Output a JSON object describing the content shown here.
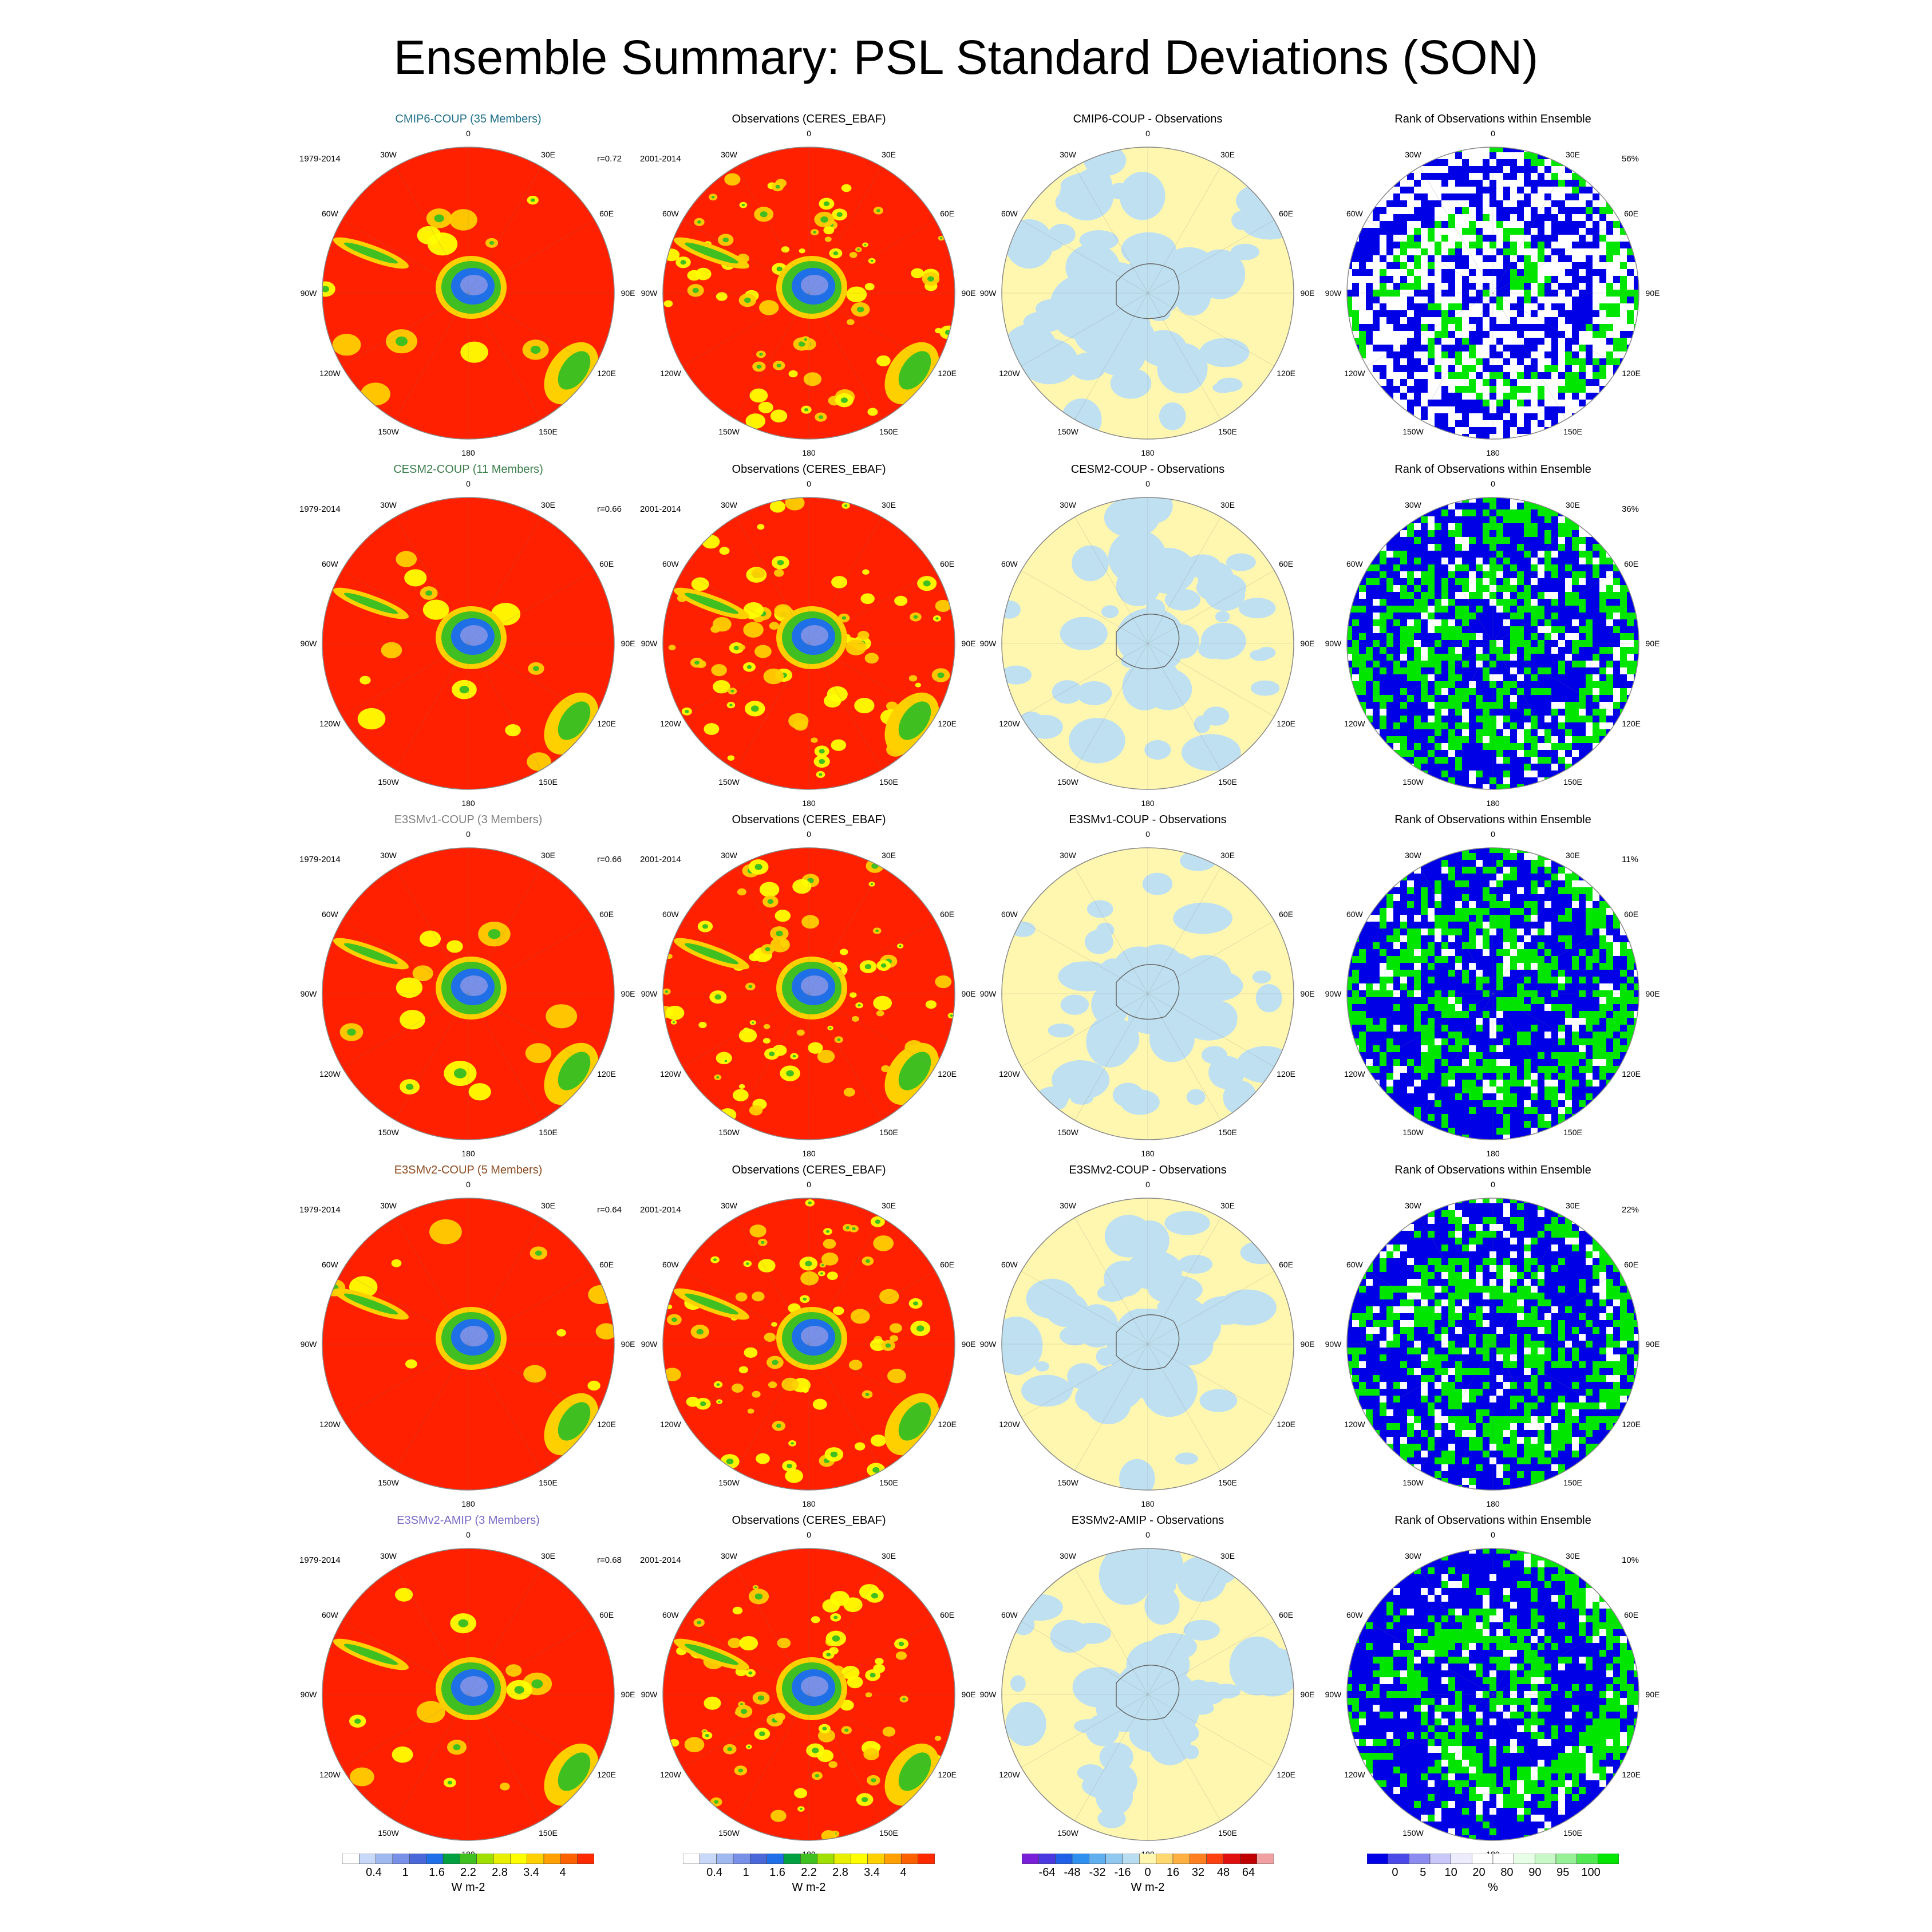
{
  "title": "Ensemble Summary: PSL Standard Deviations (SON)",
  "lon_labels": [
    "0",
    "30E",
    "60E",
    "90E",
    "120E",
    "150E",
    "180",
    "150W",
    "120W",
    "90W",
    "60W",
    "30W"
  ],
  "rows": [
    {
      "model_title": "CMIP6-COUP (35 Members)",
      "model_color": "#1f6f8b",
      "period": "1979-2014",
      "corr": "r=0.72",
      "obs_title": "Observations (CERES_EBAF)",
      "obs_period": "2001-2014",
      "diff_title": "CMIP6-COUP - Observations",
      "rank_title": "Rank of Observations within Ensemble",
      "rank_pct": "56%"
    },
    {
      "model_title": "CESM2-COUP (11 Members)",
      "model_color": "#3a7d4a",
      "period": "1979-2014",
      "corr": "r=0.66",
      "obs_title": "Observations (CERES_EBAF)",
      "obs_period": "2001-2014",
      "diff_title": "CESM2-COUP - Observations",
      "rank_title": "Rank of Observations within Ensemble",
      "rank_pct": "36%"
    },
    {
      "model_title": "E3SMv1-COUP (3 Members)",
      "model_color": "#7f7f7f",
      "period": "1979-2014",
      "corr": "r=0.66",
      "obs_title": "Observations (CERES_EBAF)",
      "obs_period": "2001-2014",
      "diff_title": "E3SMv1-COUP - Observations",
      "rank_title": "Rank of Observations within Ensemble",
      "rank_pct": "11%"
    },
    {
      "model_title": "E3SMv2-COUP (5 Members)",
      "model_color": "#8b4a1f",
      "period": "1979-2014",
      "corr": "r=0.64",
      "obs_title": "Observations (CERES_EBAF)",
      "obs_period": "2001-2014",
      "diff_title": "E3SMv2-COUP - Observations",
      "rank_title": "Rank of Observations within Ensemble",
      "rank_pct": "22%"
    },
    {
      "model_title": "E3SMv2-AMIP (3 Members)",
      "model_color": "#7b68c8",
      "period": "1979-2014",
      "corr": "r=0.68",
      "obs_title": "Observations (CERES_EBAF)",
      "obs_period": "2001-2014",
      "diff_title": "E3SMv2-AMIP - Observations",
      "rank_title": "Rank of Observations within Ensemble",
      "rank_pct": "10%"
    }
  ],
  "colorbars": [
    {
      "name": "std-colorbar-model",
      "colors": [
        "#ffffff",
        "#c8d8f8",
        "#a0b8f0",
        "#7890e8",
        "#4a68d8",
        "#1e6fe8",
        "#00a040",
        "#40c020",
        "#a0e000",
        "#e8f000",
        "#ffff00",
        "#ffd000",
        "#ffa000",
        "#ff6000",
        "#ff2a00"
      ],
      "labels": [
        "0.4",
        "1",
        "1.6",
        "2.2",
        "2.8",
        "3.4",
        "4"
      ],
      "unit": "W m-2"
    },
    {
      "name": "std-colorbar-obs",
      "colors": [
        "#ffffff",
        "#c8d8f8",
        "#a0b8f0",
        "#7890e8",
        "#4a68d8",
        "#1e6fe8",
        "#00a040",
        "#40c020",
        "#a0e000",
        "#e8f000",
        "#ffff00",
        "#ffd000",
        "#ffa000",
        "#ff6000",
        "#ff2a00"
      ],
      "labels": [
        "0.4",
        "1",
        "1.6",
        "2.2",
        "2.8",
        "3.4",
        "4"
      ],
      "unit": "W m-2"
    },
    {
      "name": "diff-colorbar",
      "colors": [
        "#7a1fd8",
        "#4a38e0",
        "#2060e8",
        "#3090f0",
        "#60b0f0",
        "#90c8f0",
        "#b8dcf0",
        "#fff7b0",
        "#ffd870",
        "#ffb040",
        "#ff8020",
        "#ff4010",
        "#e01010",
        "#c00000",
        "#f0a0a0"
      ],
      "labels": [
        "-64",
        "-48",
        "-32",
        "-16",
        "0",
        "16",
        "32",
        "48",
        "64"
      ],
      "unit": "W m-2"
    },
    {
      "name": "rank-colorbar",
      "colors": [
        "#0000e6",
        "#4a4ae8",
        "#8c8cf0",
        "#c8c8f8",
        "#ececfc",
        "#ffffff",
        "#ffffff",
        "#e6ffe6",
        "#c8f8c8",
        "#96f096",
        "#50e850",
        "#00e600"
      ],
      "labels": [
        "0",
        "5",
        "10",
        "20",
        "80",
        "90",
        "95",
        "100"
      ],
      "unit": "%"
    }
  ]
}
